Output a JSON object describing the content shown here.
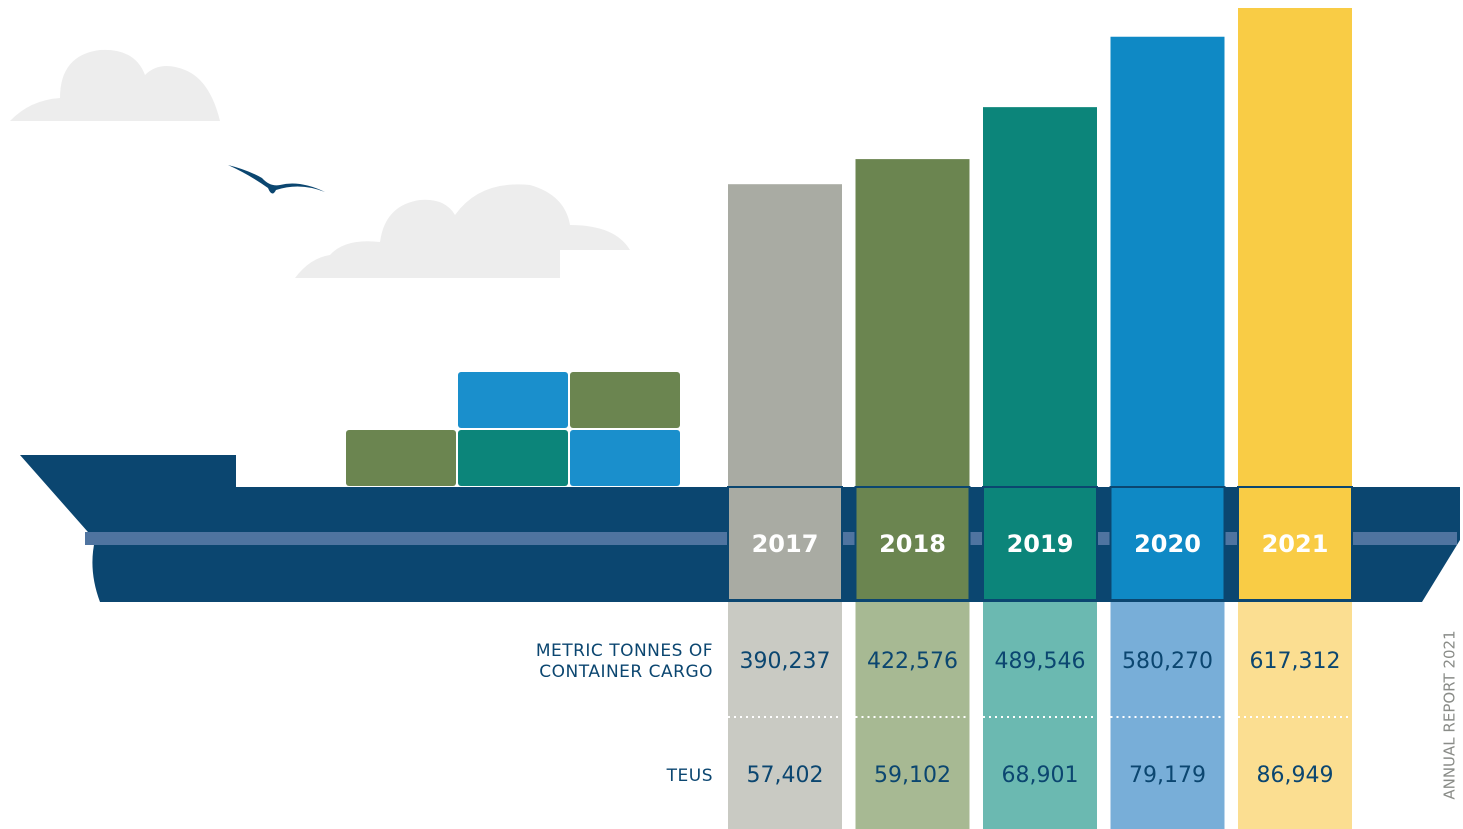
{
  "chart_data": {
    "type": "bar",
    "categories": [
      "2017",
      "2018",
      "2019",
      "2020",
      "2021"
    ],
    "colors": [
      "#a9aba3",
      "#6b8550",
      "#0c857a",
      "#0f89c5",
      "#f9cc45"
    ],
    "light_colors": [
      "#c9cac3",
      "#a7b993",
      "#6bb9b1",
      "#78aed8",
      "#fbde91"
    ],
    "series": [
      {
        "name": "METRIC TONNES OF CONTAINER CARGO",
        "values": [
          390237,
          422576,
          489546,
          580270,
          617312
        ],
        "value_labels": [
          "390,237",
          "422,576",
          "489,546",
          "580,270",
          "617,312"
        ]
      },
      {
        "name": "TEUS",
        "values": [
          57402,
          59102,
          68901,
          79179,
          86949
        ],
        "value_labels": [
          "57,402",
          "59,102",
          "68,901",
          "79,179",
          "86,949"
        ]
      }
    ],
    "side_label": "ANNUAL REPORT 2021"
  }
}
